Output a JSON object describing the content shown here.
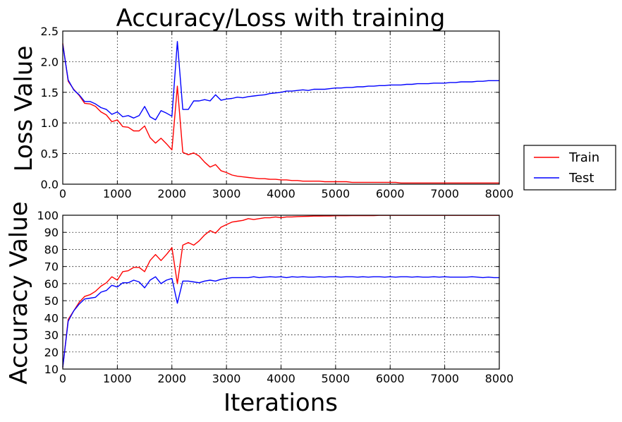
{
  "figure": {
    "title": "Accuracy/Loss with training",
    "xlabel": "Iterations"
  },
  "legend": {
    "placement": "right",
    "entries": [
      {
        "name": "Train",
        "color": "#ff0000"
      },
      {
        "name": "Test",
        "color": "#0000ff"
      }
    ]
  },
  "chart_data": [
    {
      "type": "line",
      "title": "",
      "xlabel": "",
      "ylabel": "Loss Value",
      "xlim": [
        0,
        8000
      ],
      "ylim": [
        0,
        2.5
      ],
      "xticks": [
        "0",
        "1000",
        "2000",
        "3000",
        "4000",
        "5000",
        "6000",
        "7000",
        "8000"
      ],
      "yticks": [
        "0.0",
        "0.5",
        "1.0",
        "1.5",
        "2.0",
        "2.5"
      ],
      "grid": true,
      "x": [
        0,
        100,
        200,
        300,
        400,
        500,
        600,
        700,
        800,
        900,
        1000,
        1100,
        1200,
        1300,
        1400,
        1500,
        1600,
        1700,
        1800,
        1900,
        2000,
        2100,
        2200,
        2300,
        2400,
        2500,
        2600,
        2700,
        2800,
        2900,
        3000,
        3100,
        3200,
        3300,
        3400,
        3500,
        3600,
        3700,
        3800,
        3900,
        4000,
        4100,
        4200,
        4300,
        4400,
        4500,
        4600,
        4700,
        4800,
        4900,
        5000,
        5100,
        5200,
        5300,
        5400,
        5500,
        5600,
        5700,
        5800,
        5900,
        6000,
        6100,
        6200,
        6300,
        6400,
        6500,
        6600,
        6700,
        6800,
        6900,
        7000,
        7100,
        7200,
        7300,
        7400,
        7500,
        7600,
        7700,
        7800,
        7900,
        8000
      ],
      "series": [
        {
          "name": "Train",
          "color": "#ff0000",
          "values": [
            2.3,
            1.68,
            1.55,
            1.45,
            1.32,
            1.31,
            1.27,
            1.18,
            1.13,
            1.02,
            1.05,
            0.94,
            0.93,
            0.87,
            0.87,
            0.95,
            0.76,
            0.67,
            0.75,
            0.66,
            0.56,
            1.6,
            0.52,
            0.48,
            0.51,
            0.46,
            0.36,
            0.28,
            0.32,
            0.22,
            0.19,
            0.15,
            0.13,
            0.12,
            0.11,
            0.1,
            0.09,
            0.09,
            0.08,
            0.08,
            0.07,
            0.07,
            0.06,
            0.06,
            0.05,
            0.05,
            0.05,
            0.05,
            0.04,
            0.04,
            0.04,
            0.04,
            0.04,
            0.03,
            0.03,
            0.03,
            0.03,
            0.03,
            0.03,
            0.03,
            0.03,
            0.03,
            0.02,
            0.02,
            0.02,
            0.02,
            0.02,
            0.02,
            0.02,
            0.02,
            0.02,
            0.02,
            0.02,
            0.02,
            0.02,
            0.02,
            0.02,
            0.02,
            0.02,
            0.02,
            0.02
          ]
        },
        {
          "name": "Test",
          "color": "#0000ff",
          "values": [
            2.28,
            1.7,
            1.54,
            1.46,
            1.35,
            1.35,
            1.31,
            1.25,
            1.22,
            1.14,
            1.18,
            1.1,
            1.12,
            1.08,
            1.12,
            1.27,
            1.1,
            1.05,
            1.2,
            1.16,
            1.11,
            2.33,
            1.22,
            1.22,
            1.36,
            1.36,
            1.38,
            1.36,
            1.46,
            1.37,
            1.39,
            1.4,
            1.42,
            1.41,
            1.43,
            1.44,
            1.45,
            1.46,
            1.48,
            1.49,
            1.5,
            1.52,
            1.52,
            1.53,
            1.54,
            1.53,
            1.55,
            1.55,
            1.55,
            1.56,
            1.57,
            1.57,
            1.58,
            1.58,
            1.59,
            1.59,
            1.6,
            1.6,
            1.61,
            1.61,
            1.62,
            1.62,
            1.62,
            1.63,
            1.63,
            1.64,
            1.64,
            1.64,
            1.65,
            1.65,
            1.65,
            1.66,
            1.66,
            1.67,
            1.67,
            1.67,
            1.68,
            1.68,
            1.69,
            1.69,
            1.69
          ]
        }
      ]
    },
    {
      "type": "line",
      "title": "",
      "xlabel": "Iterations",
      "ylabel": "Accuracy Value",
      "xlim": [
        0,
        8000
      ],
      "ylim": [
        10,
        100
      ],
      "xticks": [
        "0",
        "1000",
        "2000",
        "3000",
        "4000",
        "5000",
        "6000",
        "7000",
        "8000"
      ],
      "yticks": [
        "10",
        "20",
        "30",
        "40",
        "50",
        "60",
        "70",
        "80",
        "90",
        "100"
      ],
      "grid": true,
      "x": [
        0,
        100,
        200,
        300,
        400,
        500,
        600,
        700,
        800,
        900,
        1000,
        1100,
        1200,
        1300,
        1400,
        1500,
        1600,
        1700,
        1800,
        1900,
        2000,
        2100,
        2200,
        2300,
        2400,
        2500,
        2600,
        2700,
        2800,
        2900,
        3000,
        3100,
        3200,
        3300,
        3400,
        3500,
        3600,
        3700,
        3800,
        3900,
        4000,
        4100,
        4200,
        4300,
        4400,
        4500,
        4600,
        4700,
        4800,
        4900,
        5000,
        5100,
        5200,
        5300,
        5400,
        5500,
        5600,
        5700,
        5800,
        5900,
        6000,
        6100,
        6200,
        6300,
        6400,
        6500,
        6600,
        6700,
        6800,
        6900,
        7000,
        7100,
        7200,
        7300,
        7400,
        7500,
        7600,
        7700,
        7800,
        7900,
        8000
      ],
      "series": [
        {
          "name": "Train",
          "color": "#ff0000",
          "values": [
            11,
            39,
            44,
            49,
            52.5,
            53.5,
            55.5,
            58.5,
            60.5,
            64,
            62,
            67,
            67.5,
            69.5,
            69.5,
            67,
            73.5,
            77,
            73.5,
            77,
            81,
            60,
            82.5,
            84,
            82.5,
            85,
            88.5,
            91,
            89.5,
            93,
            94.5,
            96,
            96.5,
            97,
            98,
            97.5,
            98,
            98.5,
            98.5,
            99,
            98.5,
            99,
            99,
            99.2,
            99.3,
            99.4,
            99.5,
            99.5,
            99.6,
            99.6,
            99.7,
            99.7,
            99.7,
            99.8,
            99.8,
            99.8,
            99.8,
            99.8,
            99.9,
            99.9,
            99.9,
            99.9,
            99.9,
            99.9,
            99.9,
            99.9,
            99.9,
            99.9,
            99.9,
            99.9,
            99.9,
            99.9,
            99.9,
            99.9,
            99.9,
            99.9,
            99.9,
            99.9,
            99.9,
            99.9,
            99.9
          ]
        },
        {
          "name": "Test",
          "color": "#0000ff",
          "values": [
            11,
            38,
            44,
            48,
            51,
            51.5,
            52,
            55,
            56,
            59,
            58,
            60.5,
            60.5,
            62,
            61,
            57.5,
            62,
            64,
            60,
            62,
            63,
            48.5,
            61.5,
            61.5,
            61,
            60.5,
            61.5,
            62,
            61.5,
            62.5,
            63,
            63.5,
            63.5,
            63.5,
            63.5,
            64,
            63.5,
            63.8,
            64,
            63.8,
            64,
            63.5,
            64,
            63.8,
            64,
            63.8,
            63.8,
            64,
            63.8,
            64,
            64,
            63.8,
            64,
            64,
            63.8,
            64,
            63.8,
            64,
            64,
            63.8,
            64,
            63.8,
            64,
            64,
            63.8,
            64,
            63.8,
            63.8,
            64,
            63.8,
            64,
            63.8,
            63.8,
            63.8,
            63.8,
            64,
            63.8,
            63.5,
            63.8,
            63.5,
            63.5
          ]
        }
      ]
    }
  ]
}
